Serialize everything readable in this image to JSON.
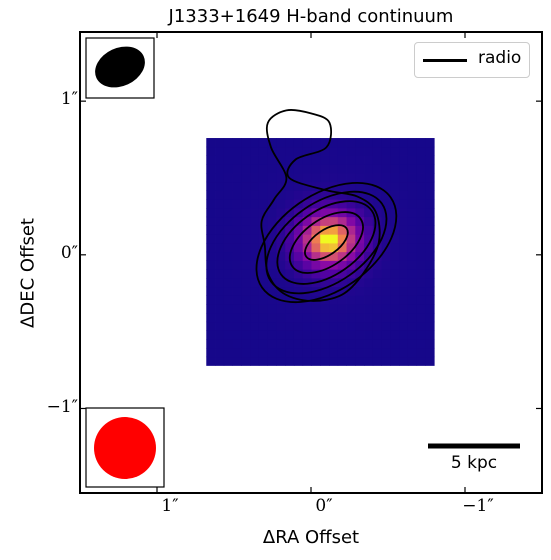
{
  "chart_data": {
    "type": "heatmap",
    "title": "J1333+1649 H-band continuum",
    "xlabel": "ΔRA Offset",
    "ylabel": "ΔDEC Offset",
    "xlim": [
      1.5,
      -1.5
    ],
    "ylim": [
      -1.55,
      1.45
    ],
    "xticks": [
      {
        "value": 1,
        "label": "1″"
      },
      {
        "value": 0,
        "label": "0″"
      },
      {
        "value": -1,
        "label": "−1″"
      }
    ],
    "yticks": [
      {
        "value": 1,
        "label": "1″"
      },
      {
        "value": 0,
        "label": "0″"
      },
      {
        "value": -1,
        "label": "−1″"
      }
    ],
    "image_extent": {
      "ra": [
        0.68,
        -0.8
      ],
      "dec": [
        -0.72,
        0.76
      ]
    },
    "image_grid": 26,
    "source_peak": {
      "ra": -0.12,
      "dec": 0.1
    },
    "colormap": "plasma",
    "contours": {
      "color": "#000000",
      "center": {
        "ra": -0.1,
        "dec": 0.08
      },
      "angle_deg": 35,
      "levels": [
        {
          "a": 0.16,
          "b": 0.08
        },
        {
          "a": 0.27,
          "b": 0.15
        },
        {
          "a": 0.36,
          "b": 0.21
        },
        {
          "a": 0.44,
          "b": 0.26
        },
        {
          "a": 0.51,
          "b": 0.31
        }
      ]
    },
    "outer_contour": [
      [
        0.3,
        0.06
      ],
      [
        0.28,
        -0.12
      ],
      [
        0.18,
        -0.25
      ],
      [
        0.0,
        -0.3
      ],
      [
        -0.2,
        -0.26
      ],
      [
        -0.34,
        -0.12
      ],
      [
        -0.44,
        0.08
      ],
      [
        -0.42,
        0.28
      ],
      [
        -0.3,
        0.38
      ],
      [
        -0.1,
        0.42
      ],
      [
        0.14,
        0.5
      ],
      [
        0.1,
        0.62
      ],
      [
        -0.1,
        0.7
      ],
      [
        -0.12,
        0.86
      ],
      [
        0.0,
        0.92
      ],
      [
        0.16,
        0.94
      ],
      [
        0.28,
        0.86
      ],
      [
        0.26,
        0.7
      ],
      [
        0.16,
        0.5
      ],
      [
        0.24,
        0.36
      ],
      [
        0.32,
        0.22
      ],
      [
        0.3,
        0.06
      ]
    ],
    "beams": [
      {
        "name": "radio beam",
        "color": "#000000",
        "position": "top-left",
        "shape": "ellipse"
      },
      {
        "name": "psf",
        "color": "#ff0000",
        "position": "bottom-left",
        "shape": "circle"
      }
    ],
    "legend": {
      "position": "top-right",
      "entries": [
        {
          "label": "radio",
          "color": "#000000"
        }
      ]
    },
    "scalebar": {
      "label": "5 kpc",
      "position": "bottom-right",
      "color": "#000000"
    }
  }
}
